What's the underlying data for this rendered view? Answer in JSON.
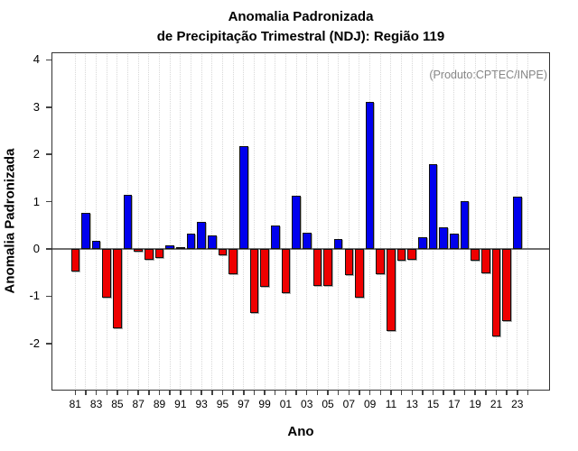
{
  "title": {
    "line1": "Anomalia Padronizada",
    "line2": "de Precipitação Trimestral (NDJ): Região 119"
  },
  "annotation": "(Produto:CPTEC/INPE)",
  "axes": {
    "x_title": "Ano",
    "y_title": "Anomalia Padronizada"
  },
  "chart_data": {
    "type": "bar",
    "title": "Anomalia Padronizada de Precipitação Trimestral (NDJ): Região 119",
    "xlabel": "Ano",
    "ylabel": "Anomalia Padronizada",
    "years": [
      1981,
      1982,
      1983,
      1984,
      1985,
      1986,
      1987,
      1988,
      1989,
      1990,
      1991,
      1992,
      1993,
      1994,
      1995,
      1996,
      1997,
      1998,
      1999,
      2000,
      2001,
      2002,
      2003,
      2004,
      2005,
      2006,
      2007,
      2008,
      2009,
      2010,
      2011,
      2012,
      2013,
      2014,
      2015,
      2016,
      2017,
      2018,
      2019,
      2020,
      2021,
      2022,
      2023
    ],
    "values": [
      -0.48,
      0.76,
      0.17,
      -1.03,
      -1.68,
      1.15,
      -0.05,
      -0.22,
      -0.19,
      0.08,
      0.04,
      0.32,
      0.58,
      0.29,
      -0.14,
      -0.53,
      2.18,
      -1.36,
      -0.8,
      0.5,
      -0.93,
      1.12,
      0.34,
      -0.79,
      -0.78,
      0.21,
      -0.55,
      -1.03,
      3.12,
      -0.54,
      -1.73,
      -0.24,
      -0.22,
      0.25,
      1.8,
      0.45,
      0.32,
      1.02,
      -0.25,
      -0.52,
      -1.85,
      -1.53,
      1.1
    ],
    "x_tick_labels": [
      "81",
      "83",
      "85",
      "87",
      "89",
      "91",
      "93",
      "95",
      "97",
      "99",
      "01",
      "03",
      "05",
      "07",
      "09",
      "11",
      "13",
      "15",
      "17",
      "19",
      "21",
      "23"
    ],
    "yticks": [
      4,
      3,
      2,
      1,
      0,
      -1,
      -2
    ],
    "ylim": [
      -3.0,
      4.17
    ],
    "grid": "vertical dotted line per year",
    "legend": "none",
    "positive_color": "#0000ee",
    "negative_color": "#ee0000",
    "annotation": "(Produto:CPTEC/INPE)",
    "annotation_color": "#868686"
  }
}
